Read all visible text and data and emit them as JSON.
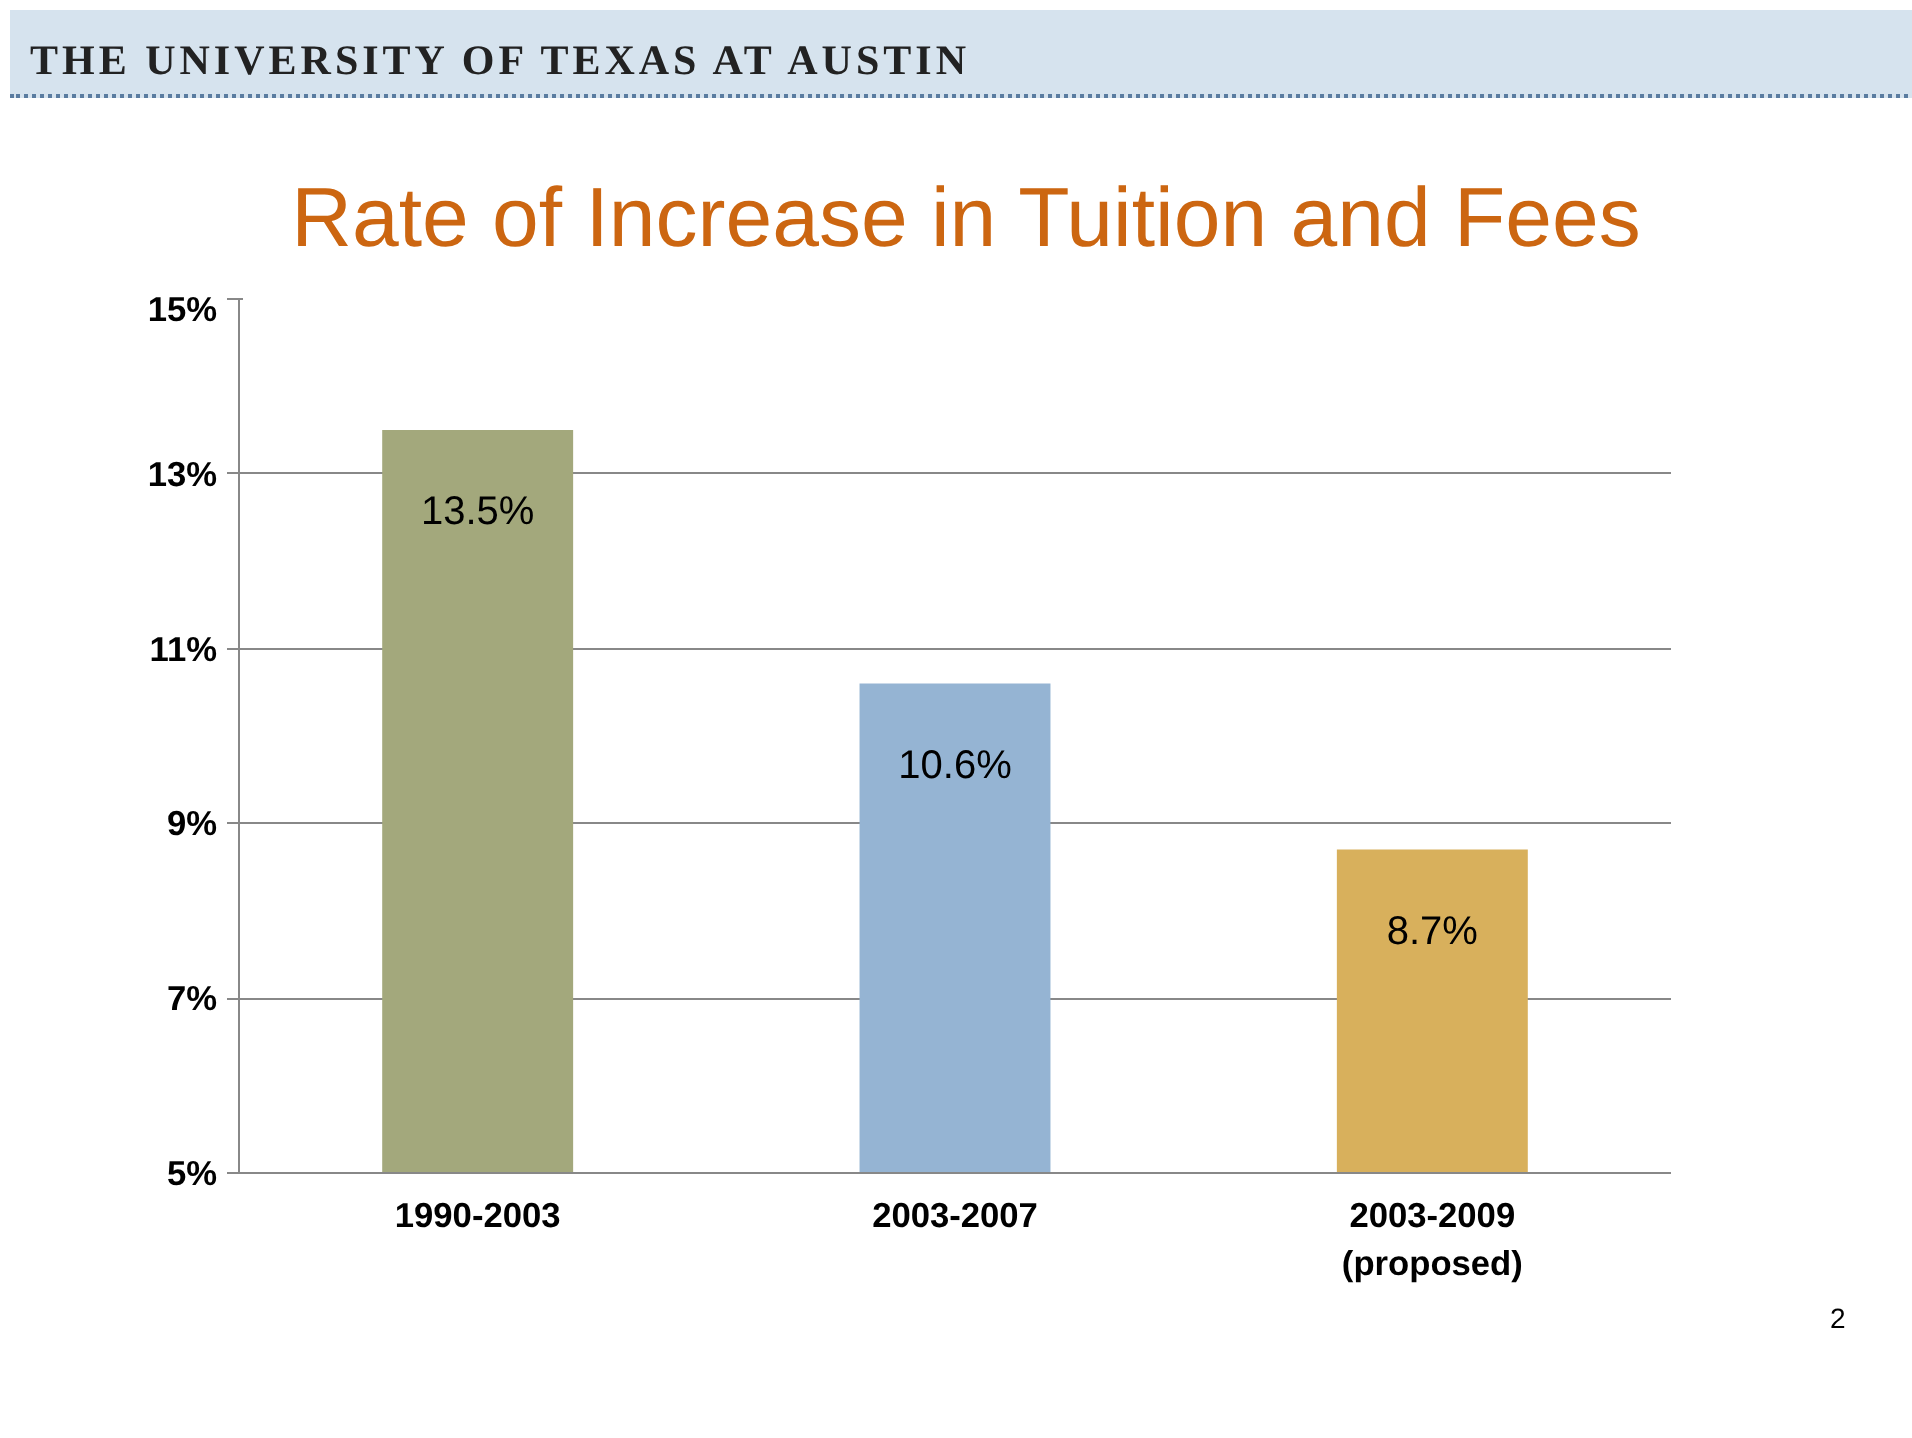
{
  "chart_data": {
    "type": "bar",
    "title": "Rate of Increase in Tuition and Fees",
    "annotations": [
      "THE UNIVERSITY OF TEXAS AT AUSTIN",
      "2"
    ],
    "categories": [
      "1990-2003",
      "2003-2007",
      "2003-2009\n(proposed)"
    ],
    "values": [
      13.5,
      10.6,
      8.7
    ],
    "colors": [
      "#a3a87c",
      "#95b4d3",
      "#d8b05c"
    ],
    "value_labels": [
      "13.5%",
      "10.6%",
      "8.7%"
    ],
    "ylim": [
      5,
      15
    ],
    "yticks": [
      {
        "value": 5,
        "label": "5%"
      },
      {
        "value": 7,
        "label": "7%"
      },
      {
        "value": 9,
        "label": "9%"
      },
      {
        "value": 11,
        "label": "11%"
      },
      {
        "value": 13,
        "label": "13%"
      },
      {
        "value": 15,
        "label": "15%"
      }
    ],
    "grid": "y"
  }
}
